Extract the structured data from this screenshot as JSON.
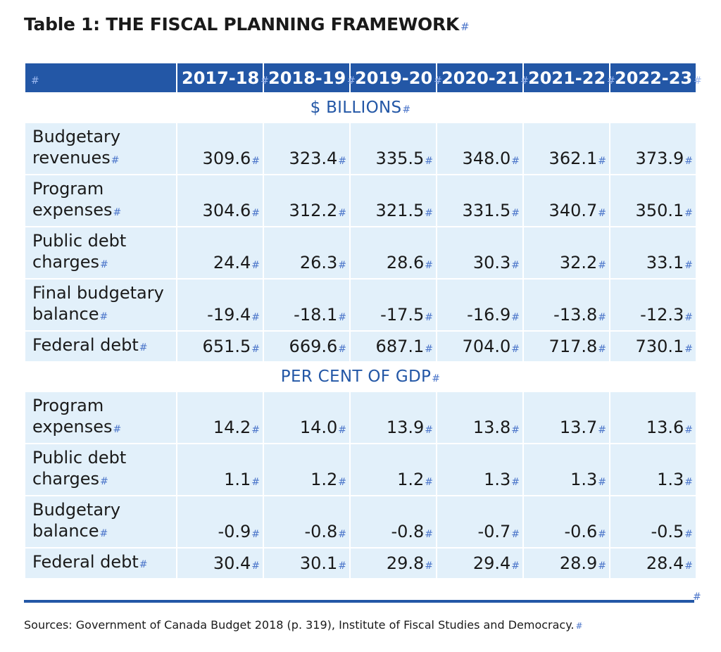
{
  "title": "Table 1: THE FISCAL PLANNING FRAMEWORK",
  "mark": "#",
  "header": {
    "corner": "#",
    "years": [
      "2017-18",
      "2018-19",
      "2019-20",
      "2020-21",
      "2021-22",
      "2022-23"
    ]
  },
  "sections": [
    {
      "heading": "$ BILLIONS",
      "rows": [
        {
          "label": "Budgetary revenues",
          "values": [
            "309.6",
            "323.4",
            "335.5",
            "348.0",
            "362.1",
            "373.9"
          ]
        },
        {
          "label": "Program expenses",
          "values": [
            "304.6",
            "312.2",
            "321.5",
            "331.5",
            "340.7",
            "350.1"
          ]
        },
        {
          "label": "Public debt charges",
          "values": [
            "24.4",
            "26.3",
            "28.6",
            "30.3",
            "32.2",
            "33.1"
          ]
        },
        {
          "label": "Final budgetary balance",
          "values": [
            "-19.4",
            "-18.1",
            "-17.5",
            "-16.9",
            "-13.8",
            "-12.3"
          ]
        },
        {
          "label": "Federal debt",
          "values": [
            "651.5",
            "669.6",
            "687.1",
            "704.0",
            "717.8",
            "730.1"
          ]
        }
      ]
    },
    {
      "heading": "PER CENT OF GDP",
      "rows": [
        {
          "label": "Program expenses",
          "values": [
            "14.2",
            "14.0",
            "13.9",
            "13.8",
            "13.7",
            "13.6"
          ]
        },
        {
          "label": "Public debt charges",
          "values": [
            "1.1",
            "1.2",
            "1.2",
            "1.3",
            "1.3",
            "1.3"
          ]
        },
        {
          "label": "Budgetary balance",
          "values": [
            "-0.9",
            "-0.8",
            "-0.8",
            "-0.7",
            "-0.6",
            "-0.5"
          ]
        },
        {
          "label": "Federal debt",
          "values": [
            "30.4",
            "30.1",
            "29.8",
            "29.4",
            "28.9",
            "28.4"
          ]
        }
      ]
    }
  ],
  "sources": "Sources: Government of Canada Budget 2018 (p. 319), Institute of Fiscal Studies and Democracy."
}
